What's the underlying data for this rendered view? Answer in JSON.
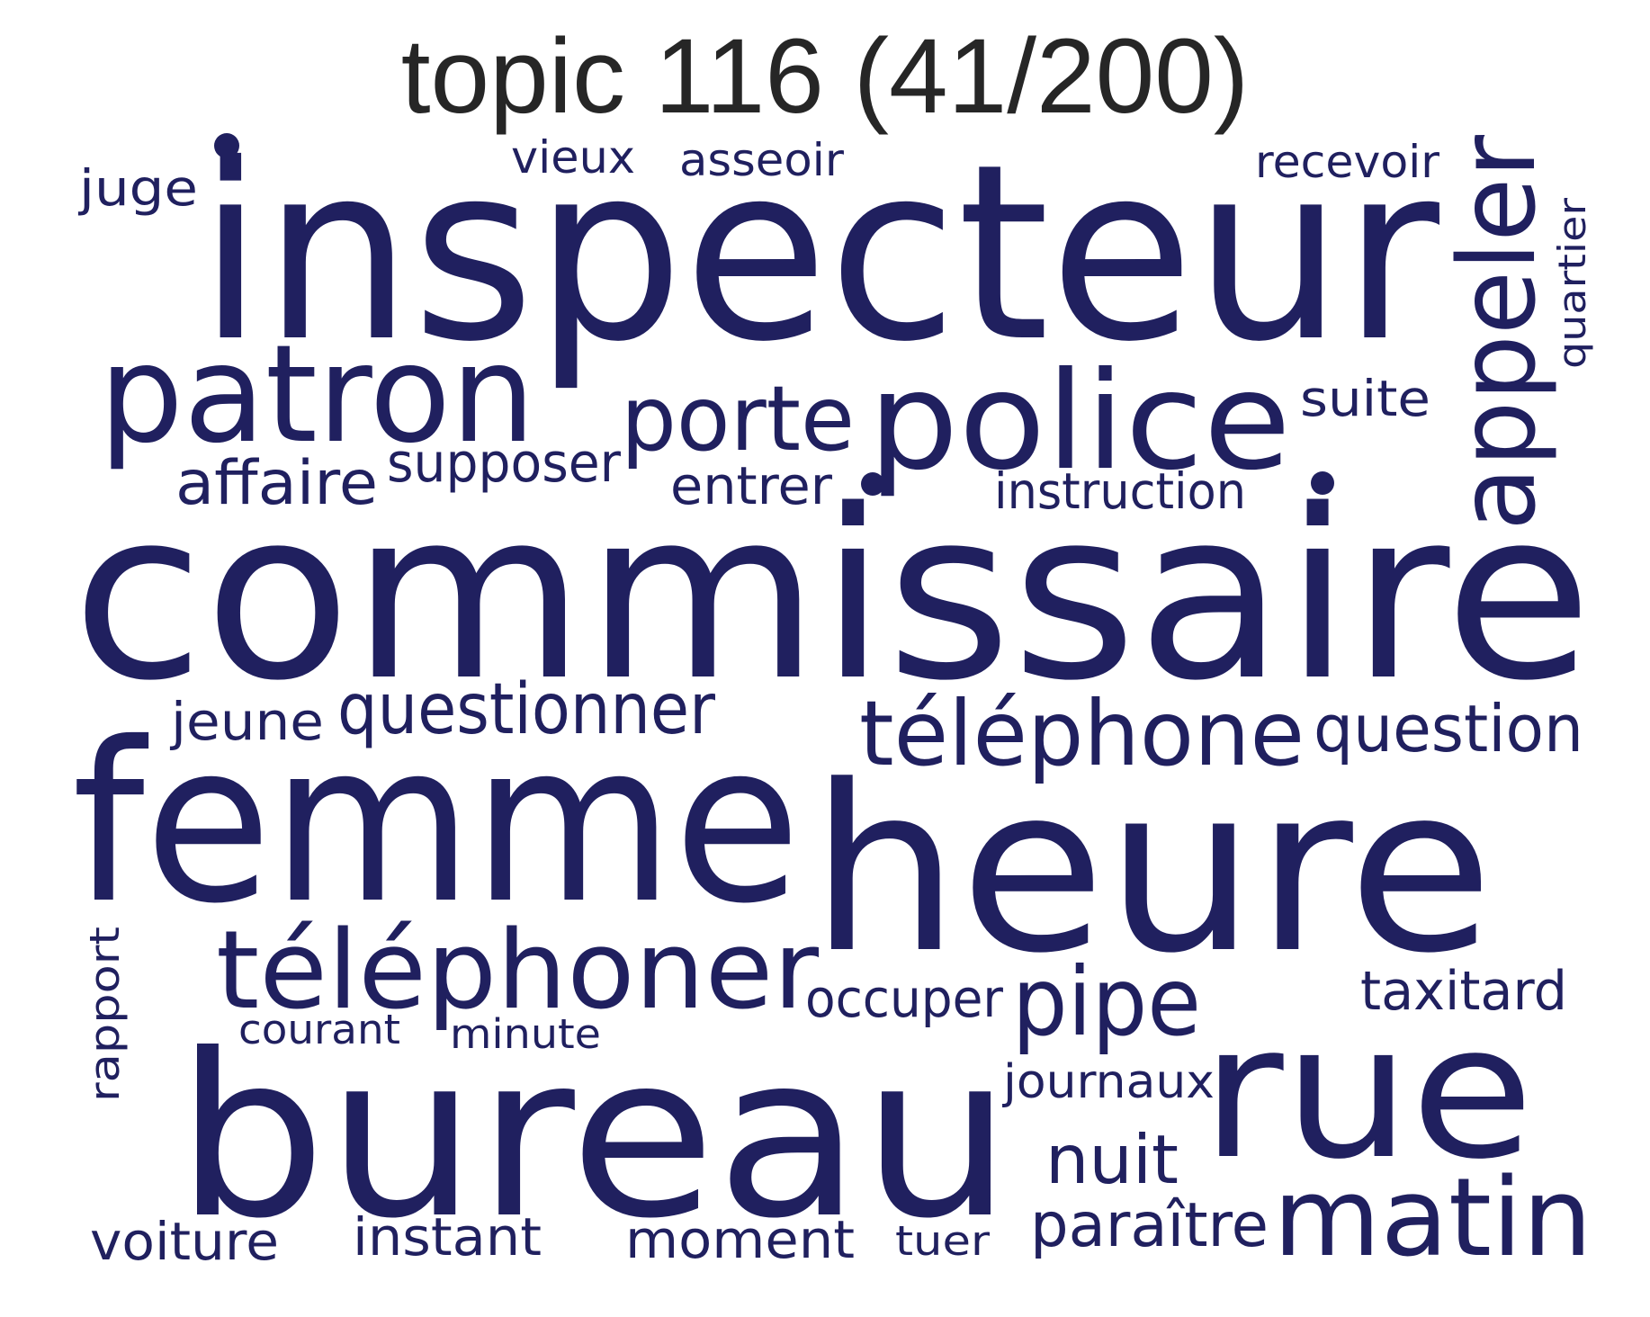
{
  "title": "topic 116 (41/200)",
  "colors": {
    "title": "#262626",
    "word": "#20205f",
    "background": "#ffffff"
  },
  "words": [
    "inspecteur",
    "commissaire",
    "femme",
    "heure",
    "bureau",
    "rue",
    "police",
    "patron",
    "téléphoner",
    "appeler",
    "téléphone",
    "matin",
    "porte",
    "pipe",
    "questionner",
    "question",
    "nuit",
    "paraître",
    "affaire",
    "supposer",
    "entrer",
    "instruction",
    "taxitard",
    "occuper",
    "journaux",
    "jeune",
    "moment",
    "instant",
    "voiture",
    "suite",
    "juge",
    "vieux",
    "asseoir",
    "recevoir",
    "quartier",
    "rapport",
    "courant",
    "minute",
    "tuer"
  ]
}
